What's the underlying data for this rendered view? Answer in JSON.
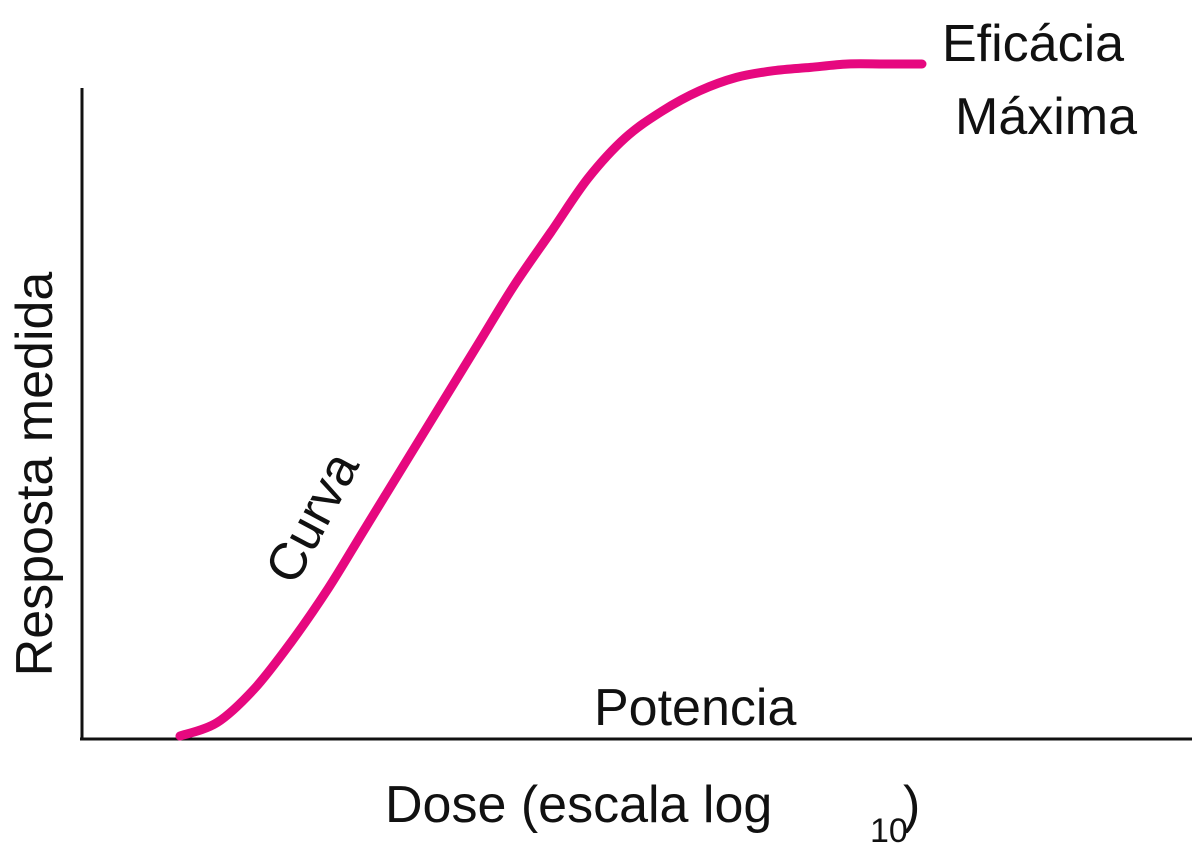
{
  "chart_data": {
    "type": "line",
    "xlabel": "Dose (escala log",
    "xlabel_subscript": "10",
    "xlabel_close": ")",
    "ylabel": "Resposta medida",
    "grid": false,
    "legend": "none",
    "series": [
      {
        "color": "#e6087f",
        "x": [
          0.0,
          0.05,
          0.1,
          0.15,
          0.2,
          0.25,
          0.3,
          0.35,
          0.4,
          0.45,
          0.5,
          0.55,
          0.6,
          0.65,
          0.7,
          0.75,
          0.8,
          0.85,
          0.9,
          0.95,
          1.0
        ],
        "y": [
          0.0,
          0.02,
          0.07,
          0.14,
          0.22,
          0.31,
          0.4,
          0.49,
          0.58,
          0.67,
          0.75,
          0.83,
          0.89,
          0.93,
          0.96,
          0.98,
          0.99,
          0.995,
          1.0,
          1.0,
          1.0
        ]
      }
    ],
    "annotations": {
      "max_efficacy": [
        "Eficácia",
        "Máxima"
      ],
      "curve": "Curva",
      "potency": "Potencia"
    }
  }
}
